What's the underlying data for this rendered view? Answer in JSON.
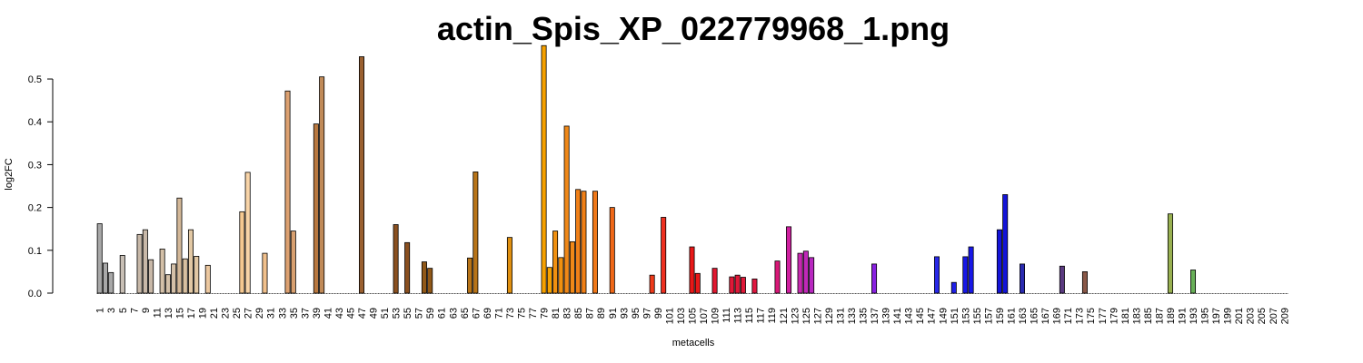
{
  "chart_data": {
    "type": "bar",
    "title": "actin_Spis_XP_022779968_1.png",
    "xlabel": "metacells",
    "ylabel": "log2FC",
    "ylim": [
      0,
      0.58
    ],
    "y_ticks": [
      "0.0",
      "0.1",
      "0.2",
      "0.3",
      "0.4",
      "0.5"
    ],
    "x_ticks": [
      "1",
      "3",
      "5",
      "7",
      "9",
      "11",
      "13",
      "15",
      "17",
      "19",
      "21",
      "23",
      "25",
      "27",
      "29",
      "31",
      "33",
      "35",
      "37",
      "39",
      "41",
      "43",
      "45",
      "47",
      "49",
      "51",
      "53",
      "55",
      "57",
      "59",
      "61",
      "63",
      "65",
      "67",
      "69",
      "71",
      "73",
      "75",
      "77",
      "79",
      "81",
      "83",
      "85",
      "87",
      "89",
      "91",
      "93",
      "95",
      "97",
      "99",
      "101",
      "103",
      "105",
      "107",
      "109",
      "111",
      "113",
      "115",
      "117",
      "119",
      "121",
      "123",
      "125",
      "127",
      "129",
      "131",
      "133",
      "135",
      "137",
      "139",
      "141",
      "143",
      "145",
      "147",
      "149",
      "151",
      "153",
      "155",
      "157",
      "159",
      "161",
      "163",
      "165",
      "167",
      "169",
      "171",
      "173",
      "175",
      "177",
      "179",
      "181",
      "183",
      "185",
      "187",
      "189",
      "191",
      "193",
      "195",
      "197",
      "199",
      "201",
      "203",
      "205",
      "207",
      "209"
    ],
    "n_categories": 209,
    "grid": false,
    "legend": "none",
    "bars": [
      {
        "x": 1,
        "value": 0.162,
        "color": "#a8a8a8"
      },
      {
        "x": 2,
        "value": 0.07,
        "color": "#a8a8a8"
      },
      {
        "x": 3,
        "value": 0.048,
        "color": "#a8a8a8"
      },
      {
        "x": 5,
        "value": 0.088,
        "color": "#c8bfb5"
      },
      {
        "x": 8,
        "value": 0.137,
        "color": "#c8b8a8"
      },
      {
        "x": 9,
        "value": 0.148,
        "color": "#c8b8a8"
      },
      {
        "x": 10,
        "value": 0.078,
        "color": "#c8b8a8"
      },
      {
        "x": 12,
        "value": 0.103,
        "color": "#d4c0a8"
      },
      {
        "x": 13,
        "value": 0.043,
        "color": "#d4c0a8"
      },
      {
        "x": 14,
        "value": 0.068,
        "color": "#d4c0a8"
      },
      {
        "x": 15,
        "value": 0.222,
        "color": "#d4b898"
      },
      {
        "x": 16,
        "value": 0.08,
        "color": "#d8c0a0"
      },
      {
        "x": 17,
        "value": 0.148,
        "color": "#e2c8a4"
      },
      {
        "x": 18,
        "value": 0.086,
        "color": "#e2c8a4"
      },
      {
        "x": 20,
        "value": 0.065,
        "color": "#ecc8a0"
      },
      {
        "x": 26,
        "value": 0.19,
        "color": "#f5c890"
      },
      {
        "x": 27,
        "value": 0.282,
        "color": "#f8d4a8"
      },
      {
        "x": 30,
        "value": 0.093,
        "color": "#f0c08c"
      },
      {
        "x": 34,
        "value": 0.472,
        "color": "#dca070"
      },
      {
        "x": 35,
        "value": 0.145,
        "color": "#d8a070"
      },
      {
        "x": 39,
        "value": 0.395,
        "color": "#b87840"
      },
      {
        "x": 40,
        "value": 0.505,
        "color": "#c08a58"
      },
      {
        "x": 47,
        "value": 0.552,
        "color": "#9a6030"
      },
      {
        "x": 53,
        "value": 0.16,
        "color": "#8a5020"
      },
      {
        "x": 55,
        "value": 0.118,
        "color": "#8a5020"
      },
      {
        "x": 58,
        "value": 0.073,
        "color": "#905818"
      },
      {
        "x": 59,
        "value": 0.058,
        "color": "#905818"
      },
      {
        "x": 66,
        "value": 0.082,
        "color": "#b87418"
      },
      {
        "x": 67,
        "value": 0.283,
        "color": "#b87418"
      },
      {
        "x": 73,
        "value": 0.13,
        "color": "#e09010"
      },
      {
        "x": 79,
        "value": 0.578,
        "color": "#f5a000"
      },
      {
        "x": 80,
        "value": 0.06,
        "color": "#f5a000"
      },
      {
        "x": 81,
        "value": 0.145,
        "color": "#f09010"
      },
      {
        "x": 82,
        "value": 0.083,
        "color": "#f09010"
      },
      {
        "x": 83,
        "value": 0.39,
        "color": "#f08818"
      },
      {
        "x": 84,
        "value": 0.12,
        "color": "#f08818"
      },
      {
        "x": 85,
        "value": 0.242,
        "color": "#f08018"
      },
      {
        "x": 86,
        "value": 0.238,
        "color": "#f08018"
      },
      {
        "x": 88,
        "value": 0.238,
        "color": "#f07818"
      },
      {
        "x": 91,
        "value": 0.2,
        "color": "#f06818"
      },
      {
        "x": 98,
        "value": 0.042,
        "color": "#ee3a1a"
      },
      {
        "x": 100,
        "value": 0.177,
        "color": "#ee3020"
      },
      {
        "x": 105,
        "value": 0.108,
        "color": "#e81818"
      },
      {
        "x": 106,
        "value": 0.046,
        "color": "#e81818"
      },
      {
        "x": 109,
        "value": 0.058,
        "color": "#e01830"
      },
      {
        "x": 112,
        "value": 0.038,
        "color": "#e01838"
      },
      {
        "x": 113,
        "value": 0.042,
        "color": "#e01838"
      },
      {
        "x": 114,
        "value": 0.037,
        "color": "#e01838"
      },
      {
        "x": 116,
        "value": 0.033,
        "color": "#e01840"
      },
      {
        "x": 120,
        "value": 0.075,
        "color": "#d81878"
      },
      {
        "x": 122,
        "value": 0.155,
        "color": "#d020a0"
      },
      {
        "x": 124,
        "value": 0.093,
        "color": "#c828b0"
      },
      {
        "x": 125,
        "value": 0.098,
        "color": "#c028b8"
      },
      {
        "x": 126,
        "value": 0.083,
        "color": "#b828c0"
      },
      {
        "x": 137,
        "value": 0.068,
        "color": "#8820e0"
      },
      {
        "x": 148,
        "value": 0.085,
        "color": "#2828e8"
      },
      {
        "x": 151,
        "value": 0.025,
        "color": "#2020e8"
      },
      {
        "x": 153,
        "value": 0.085,
        "color": "#1818e8"
      },
      {
        "x": 154,
        "value": 0.108,
        "color": "#1818e8"
      },
      {
        "x": 159,
        "value": 0.148,
        "color": "#1414d8"
      },
      {
        "x": 160,
        "value": 0.23,
        "color": "#1414d8"
      },
      {
        "x": 163,
        "value": 0.068,
        "color": "#2a2ab0"
      },
      {
        "x": 170,
        "value": 0.063,
        "color": "#5a3a80"
      },
      {
        "x": 174,
        "value": 0.05,
        "color": "#8a5848"
      },
      {
        "x": 189,
        "value": 0.185,
        "color": "#98b050"
      },
      {
        "x": 193,
        "value": 0.054,
        "color": "#68b058"
      }
    ]
  }
}
